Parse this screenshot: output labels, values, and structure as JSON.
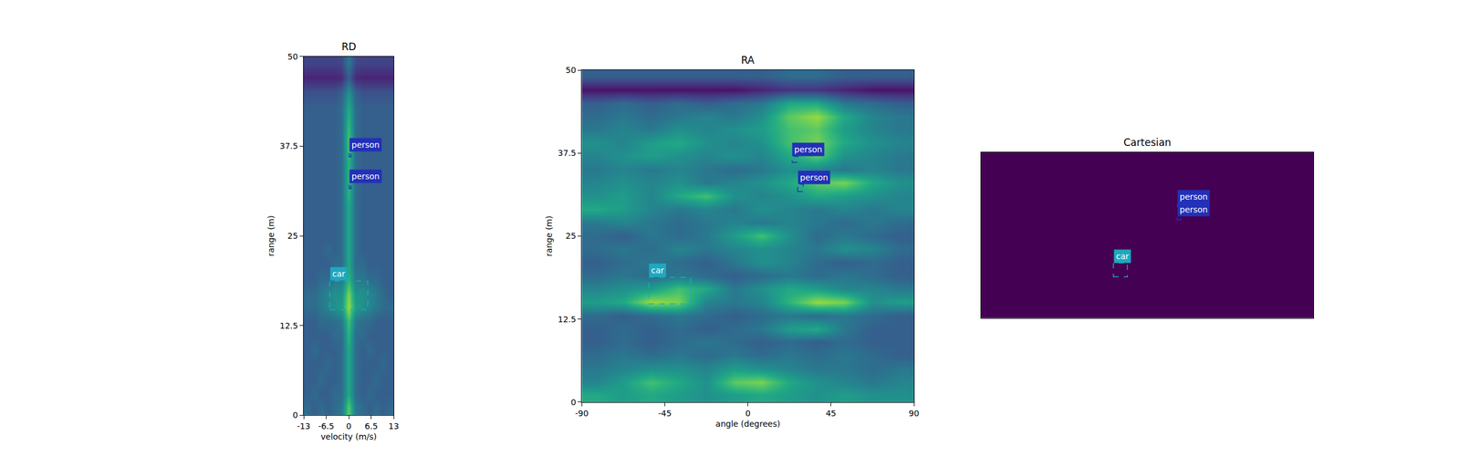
{
  "chart_data": [
    {
      "type": "heatmap",
      "title": "RD",
      "x_label": "velocity (m/s)",
      "y_label": "range (m)",
      "xlim": [
        -13,
        13
      ],
      "xticks": [
        -13,
        -6.5,
        0,
        6.5,
        13
      ],
      "ylim": [
        0,
        50
      ],
      "yticks": [
        0,
        12.5,
        25,
        37.5,
        50
      ],
      "color": "Viridis",
      "zlim": [
        0,
        1
      ],
      "x": [
        -12,
        -10,
        -8,
        -6,
        -4,
        -2,
        0,
        2,
        4,
        6,
        8,
        10,
        12
      ],
      "y": [
        1,
        3,
        5,
        7,
        9,
        11,
        13,
        15,
        17,
        19,
        21,
        23,
        25,
        27,
        29,
        31,
        33,
        35,
        37,
        39,
        41,
        43,
        45,
        47,
        49
      ],
      "cells": [
        [
          0.35,
          0.3,
          0.35,
          0.3,
          0.35,
          0.4,
          0.75,
          0.4,
          0.35,
          0.3,
          0.35,
          0.3,
          0.35
        ],
        [
          0.3,
          0.35,
          0.3,
          0.3,
          0.35,
          0.35,
          0.6,
          0.35,
          0.3,
          0.35,
          0.3,
          0.3,
          0.3
        ],
        [
          0.3,
          0.3,
          0.35,
          0.3,
          0.3,
          0.35,
          0.6,
          0.35,
          0.3,
          0.3,
          0.35,
          0.3,
          0.3
        ],
        [
          0.3,
          0.3,
          0.3,
          0.35,
          0.3,
          0.35,
          0.6,
          0.35,
          0.3,
          0.3,
          0.3,
          0.35,
          0.3
        ],
        [
          0.3,
          0.35,
          0.3,
          0.3,
          0.3,
          0.35,
          0.6,
          0.35,
          0.3,
          0.35,
          0.3,
          0.3,
          0.3
        ],
        [
          0.3,
          0.3,
          0.3,
          0.3,
          0.35,
          0.35,
          0.65,
          0.35,
          0.35,
          0.3,
          0.3,
          0.3,
          0.3
        ],
        [
          0.3,
          0.3,
          0.35,
          0.35,
          0.35,
          0.4,
          0.7,
          0.4,
          0.35,
          0.35,
          0.3,
          0.3,
          0.3
        ],
        [
          0.35,
          0.35,
          0.4,
          0.45,
          0.5,
          0.55,
          0.85,
          0.55,
          0.5,
          0.45,
          0.4,
          0.35,
          0.35
        ],
        [
          0.35,
          0.35,
          0.4,
          0.45,
          0.5,
          0.5,
          0.8,
          0.5,
          0.5,
          0.45,
          0.4,
          0.35,
          0.3
        ],
        [
          0.3,
          0.3,
          0.35,
          0.35,
          0.4,
          0.4,
          0.65,
          0.4,
          0.4,
          0.35,
          0.35,
          0.3,
          0.3
        ],
        [
          0.3,
          0.3,
          0.3,
          0.3,
          0.35,
          0.35,
          0.6,
          0.35,
          0.35,
          0.3,
          0.3,
          0.3,
          0.3
        ],
        [
          0.3,
          0.3,
          0.3,
          0.35,
          0.3,
          0.35,
          0.6,
          0.35,
          0.3,
          0.3,
          0.3,
          0.3,
          0.3
        ],
        [
          0.3,
          0.3,
          0.3,
          0.3,
          0.3,
          0.35,
          0.6,
          0.35,
          0.3,
          0.3,
          0.3,
          0.3,
          0.3
        ],
        [
          0.3,
          0.3,
          0.3,
          0.3,
          0.3,
          0.35,
          0.6,
          0.35,
          0.3,
          0.3,
          0.3,
          0.3,
          0.3
        ],
        [
          0.3,
          0.3,
          0.3,
          0.3,
          0.3,
          0.35,
          0.6,
          0.35,
          0.3,
          0.3,
          0.3,
          0.3,
          0.3
        ],
        [
          0.3,
          0.3,
          0.3,
          0.3,
          0.3,
          0.35,
          0.65,
          0.35,
          0.3,
          0.3,
          0.3,
          0.3,
          0.3
        ],
        [
          0.3,
          0.3,
          0.3,
          0.3,
          0.3,
          0.35,
          0.65,
          0.35,
          0.3,
          0.3,
          0.3,
          0.3,
          0.3
        ],
        [
          0.3,
          0.3,
          0.3,
          0.3,
          0.3,
          0.35,
          0.65,
          0.35,
          0.3,
          0.3,
          0.3,
          0.3,
          0.3
        ],
        [
          0.3,
          0.3,
          0.3,
          0.3,
          0.3,
          0.35,
          0.7,
          0.35,
          0.3,
          0.3,
          0.3,
          0.3,
          0.3
        ],
        [
          0.3,
          0.3,
          0.3,
          0.3,
          0.3,
          0.35,
          0.7,
          0.35,
          0.3,
          0.3,
          0.3,
          0.3,
          0.3
        ],
        [
          0.3,
          0.3,
          0.3,
          0.3,
          0.3,
          0.35,
          0.65,
          0.35,
          0.3,
          0.3,
          0.3,
          0.3,
          0.3
        ],
        [
          0.3,
          0.3,
          0.3,
          0.3,
          0.3,
          0.35,
          0.6,
          0.35,
          0.3,
          0.3,
          0.3,
          0.3,
          0.3
        ],
        [
          0.25,
          0.25,
          0.25,
          0.25,
          0.25,
          0.3,
          0.5,
          0.3,
          0.25,
          0.25,
          0.25,
          0.25,
          0.25
        ],
        [
          0.1,
          0.1,
          0.1,
          0.1,
          0.1,
          0.12,
          0.3,
          0.12,
          0.1,
          0.1,
          0.1,
          0.1,
          0.1
        ],
        [
          0.2,
          0.2,
          0.2,
          0.2,
          0.2,
          0.22,
          0.4,
          0.22,
          0.2,
          0.2,
          0.2,
          0.2,
          0.2
        ]
      ],
      "objects": [
        {
          "label": "person",
          "color": "#2330b8",
          "x0": 0.1,
          "x1": 0.7,
          "y0": 36,
          "y1": 36.7
        },
        {
          "label": "person",
          "color": "#2330b8",
          "x0": 0.1,
          "x1": 0.7,
          "y0": 31.6,
          "y1": 32.3
        },
        {
          "label": "car",
          "color": "#1fa8c0",
          "x0": -5.5,
          "x1": 5.5,
          "y0": 14.7,
          "y1": 18.7
        }
      ]
    },
    {
      "type": "heatmap",
      "title": "RA",
      "x_label": "angle (degrees)",
      "y_label": "range (m)",
      "xlim": [
        -90,
        90
      ],
      "xticks": [
        -90,
        -45,
        0,
        45,
        90
      ],
      "ylim": [
        0,
        50
      ],
      "yticks": [
        0,
        12.5,
        25,
        37.5,
        50
      ],
      "color": "Viridis",
      "zlim": [
        0,
        1
      ],
      "x": [
        -82.5,
        -67.5,
        -52.5,
        -37.5,
        -22.5,
        -7.5,
        7.5,
        22.5,
        37.5,
        52.5,
        67.5,
        82.5
      ],
      "y": [
        1,
        3,
        5,
        7,
        9,
        11,
        13,
        15,
        17,
        19,
        21,
        23,
        25,
        27,
        29,
        31,
        33,
        35,
        37,
        39,
        41,
        43,
        45,
        47,
        49
      ],
      "cells": [
        [
          0.6,
          0.55,
          0.6,
          0.55,
          0.5,
          0.55,
          0.6,
          0.55,
          0.5,
          0.55,
          0.5,
          0.5
        ],
        [
          0.45,
          0.55,
          0.7,
          0.6,
          0.5,
          0.75,
          0.8,
          0.6,
          0.5,
          0.45,
          0.4,
          0.45
        ],
        [
          0.4,
          0.45,
          0.5,
          0.5,
          0.45,
          0.55,
          0.5,
          0.45,
          0.4,
          0.4,
          0.35,
          0.4
        ],
        [
          0.35,
          0.4,
          0.35,
          0.4,
          0.35,
          0.4,
          0.35,
          0.4,
          0.35,
          0.4,
          0.35,
          0.3
        ],
        [
          0.3,
          0.35,
          0.3,
          0.35,
          0.4,
          0.35,
          0.3,
          0.35,
          0.3,
          0.35,
          0.3,
          0.3
        ],
        [
          0.3,
          0.35,
          0.3,
          0.35,
          0.3,
          0.35,
          0.4,
          0.55,
          0.6,
          0.4,
          0.3,
          0.3
        ],
        [
          0.35,
          0.3,
          0.35,
          0.4,
          0.35,
          0.3,
          0.35,
          0.4,
          0.35,
          0.4,
          0.35,
          0.3
        ],
        [
          0.55,
          0.6,
          0.85,
          0.8,
          0.45,
          0.4,
          0.45,
          0.65,
          0.85,
          0.8,
          0.5,
          0.55
        ],
        [
          0.45,
          0.5,
          0.55,
          0.7,
          0.6,
          0.4,
          0.5,
          0.6,
          0.55,
          0.45,
          0.45,
          0.4
        ],
        [
          0.35,
          0.4,
          0.35,
          0.4,
          0.35,
          0.3,
          0.35,
          0.4,
          0.35,
          0.4,
          0.35,
          0.3
        ],
        [
          0.3,
          0.35,
          0.4,
          0.35,
          0.3,
          0.4,
          0.5,
          0.45,
          0.35,
          0.3,
          0.35,
          0.3
        ],
        [
          0.35,
          0.4,
          0.35,
          0.45,
          0.4,
          0.45,
          0.5,
          0.45,
          0.4,
          0.5,
          0.45,
          0.35
        ],
        [
          0.35,
          0.3,
          0.4,
          0.35,
          0.4,
          0.55,
          0.7,
          0.5,
          0.35,
          0.4,
          0.35,
          0.3
        ],
        [
          0.4,
          0.45,
          0.4,
          0.35,
          0.4,
          0.45,
          0.4,
          0.45,
          0.4,
          0.35,
          0.4,
          0.35
        ],
        [
          0.6,
          0.55,
          0.45,
          0.4,
          0.45,
          0.4,
          0.5,
          0.45,
          0.4,
          0.45,
          0.4,
          0.45
        ],
        [
          0.5,
          0.55,
          0.45,
          0.6,
          0.7,
          0.5,
          0.45,
          0.5,
          0.6,
          0.55,
          0.5,
          0.45
        ],
        [
          0.45,
          0.5,
          0.45,
          0.5,
          0.4,
          0.45,
          0.5,
          0.6,
          0.75,
          0.8,
          0.6,
          0.5
        ],
        [
          0.4,
          0.45,
          0.4,
          0.45,
          0.4,
          0.35,
          0.4,
          0.5,
          0.45,
          0.4,
          0.45,
          0.4
        ],
        [
          0.45,
          0.5,
          0.55,
          0.5,
          0.45,
          0.5,
          0.45,
          0.6,
          0.75,
          0.5,
          0.45,
          0.4
        ],
        [
          0.5,
          0.45,
          0.55,
          0.6,
          0.5,
          0.45,
          0.5,
          0.7,
          0.8,
          0.6,
          0.5,
          0.45
        ],
        [
          0.4,
          0.45,
          0.4,
          0.5,
          0.45,
          0.5,
          0.55,
          0.7,
          0.75,
          0.55,
          0.45,
          0.4
        ],
        [
          0.35,
          0.4,
          0.35,
          0.4,
          0.45,
          0.4,
          0.5,
          0.75,
          0.85,
          0.6,
          0.45,
          0.4
        ],
        [
          0.3,
          0.35,
          0.3,
          0.35,
          0.3,
          0.35,
          0.4,
          0.6,
          0.6,
          0.4,
          0.35,
          0.3
        ],
        [
          0.05,
          0.05,
          0.05,
          0.05,
          0.05,
          0.05,
          0.1,
          0.15,
          0.15,
          0.1,
          0.05,
          0.05
        ],
        [
          0.3,
          0.3,
          0.3,
          0.3,
          0.3,
          0.3,
          0.3,
          0.35,
          0.35,
          0.3,
          0.3,
          0.3
        ]
      ],
      "objects": [
        {
          "label": "person",
          "color": "#2330b8",
          "x0": 24,
          "x1": 27,
          "y0": 36.1,
          "y1": 37
        },
        {
          "label": "person",
          "color": "#2330b8",
          "x0": 27,
          "x1": 30,
          "y0": 31.7,
          "y1": 32.8
        },
        {
          "label": "car",
          "color": "#1fa8c0",
          "x0": -53.7,
          "x1": -31,
          "y0": 14.8,
          "y1": 18.8
        }
      ]
    },
    {
      "type": "heatmap",
      "title": "Cartesian",
      "tick_labels": false,
      "xlim": [
        -50,
        50
      ],
      "ylim": [
        0,
        50
      ],
      "color": "Viridis",
      "zlim": [
        0,
        1
      ],
      "x": [
        -25,
        25
      ],
      "y": [
        12.5,
        37.5
      ],
      "cells": [
        [
          0,
          0
        ],
        [
          0,
          0
        ]
      ],
      "objects": [
        {
          "label": "person",
          "color": "#2330b8",
          "x0": 9,
          "x1": 10,
          "y0": 33.5,
          "y1": 34.5
        },
        {
          "label": "person",
          "color": "#2330b8",
          "x0": 9,
          "x1": 10,
          "y0": 29.6,
          "y1": 30.6
        },
        {
          "label": "car",
          "color": "#1fa8c0",
          "x0": -10.2,
          "x1": -6,
          "y0": 12.4,
          "y1": 16.6
        }
      ]
    }
  ]
}
